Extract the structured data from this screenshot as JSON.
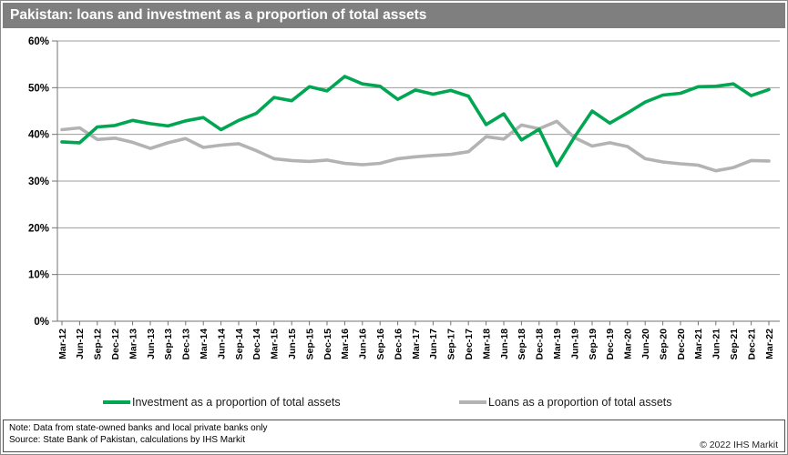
{
  "title": "Pakistan: loans and investment as a proportion of total assets",
  "legend": {
    "investment_label": "Investment as a proportion of total assets",
    "loans_label": "Loans as a proportion of total assets"
  },
  "footer": {
    "note": "Note: Data from state-owned banks and local private banks only",
    "source": "Source: State Bank of Pakistan, calculations by IHS Markit",
    "copyright": "© 2022  IHS Markit"
  },
  "colors": {
    "title_bar": "#7f7f7f",
    "investment": "#00a651",
    "loans": "#b3b3b3",
    "grid": "#9d9d9d",
    "axis": "#737373",
    "tick_label": "#000000"
  },
  "chart_data": {
    "type": "line",
    "title": "Pakistan: loans and investment as a proportion of total assets",
    "xlabel": "",
    "ylabel": "",
    "ylim": [
      0,
      60
    ],
    "ytick_step": 10,
    "ytick_suffix": "%",
    "grid": true,
    "legend_position": "bottom",
    "x": [
      "Mar-12",
      "Jun-12",
      "Sep-12",
      "Dec-12",
      "Mar-13",
      "Jun-13",
      "Sep-13",
      "Dec-13",
      "Mar-14",
      "Jun-14",
      "Sep-14",
      "Dec-14",
      "Mar-15",
      "Jun-15",
      "Sep-15",
      "Dec-15",
      "Mar-16",
      "Jun-16",
      "Sep-16",
      "Dec-16",
      "Mar-17",
      "Jun-17",
      "Sep-17",
      "Dec-17",
      "Mar-18",
      "Jun-18",
      "Sep-18",
      "Dec-18",
      "Mar-19",
      "Jun-19",
      "Sep-19",
      "Dec-19",
      "Mar-20",
      "Jun-20",
      "Sep-20",
      "Dec-20",
      "Mar-21",
      "Jun-21",
      "Sep-21",
      "Dec-21",
      "Mar-22"
    ],
    "series": [
      {
        "name": "Investment as a proportion of total assets",
        "color": "#00a651",
        "values": [
          38.4,
          38.2,
          41.6,
          41.9,
          43.0,
          42.3,
          41.8,
          42.9,
          43.6,
          41.0,
          43.0,
          44.5,
          47.9,
          47.2,
          50.2,
          49.3,
          52.4,
          50.8,
          50.3,
          47.5,
          49.5,
          48.6,
          49.4,
          48.2,
          42.1,
          44.4,
          38.8,
          41.1,
          33.3,
          39.4,
          45.0,
          42.4,
          44.6,
          46.9,
          48.4,
          48.8,
          50.2,
          50.3,
          50.8,
          48.3,
          49.6
        ]
      },
      {
        "name": "Loans as a proportion of total assets",
        "color": "#b3b3b3",
        "values": [
          41.0,
          41.4,
          38.9,
          39.2,
          38.3,
          37.0,
          38.2,
          39.1,
          37.2,
          37.7,
          38.0,
          36.5,
          34.8,
          34.4,
          34.2,
          34.5,
          33.8,
          33.5,
          33.8,
          34.8,
          35.2,
          35.5,
          35.7,
          36.3,
          39.5,
          39.0,
          42.0,
          41.2,
          42.8,
          39.3,
          37.5,
          38.2,
          37.4,
          34.8,
          34.1,
          33.7,
          33.4,
          32.2,
          32.9,
          34.4,
          34.3
        ]
      }
    ]
  }
}
